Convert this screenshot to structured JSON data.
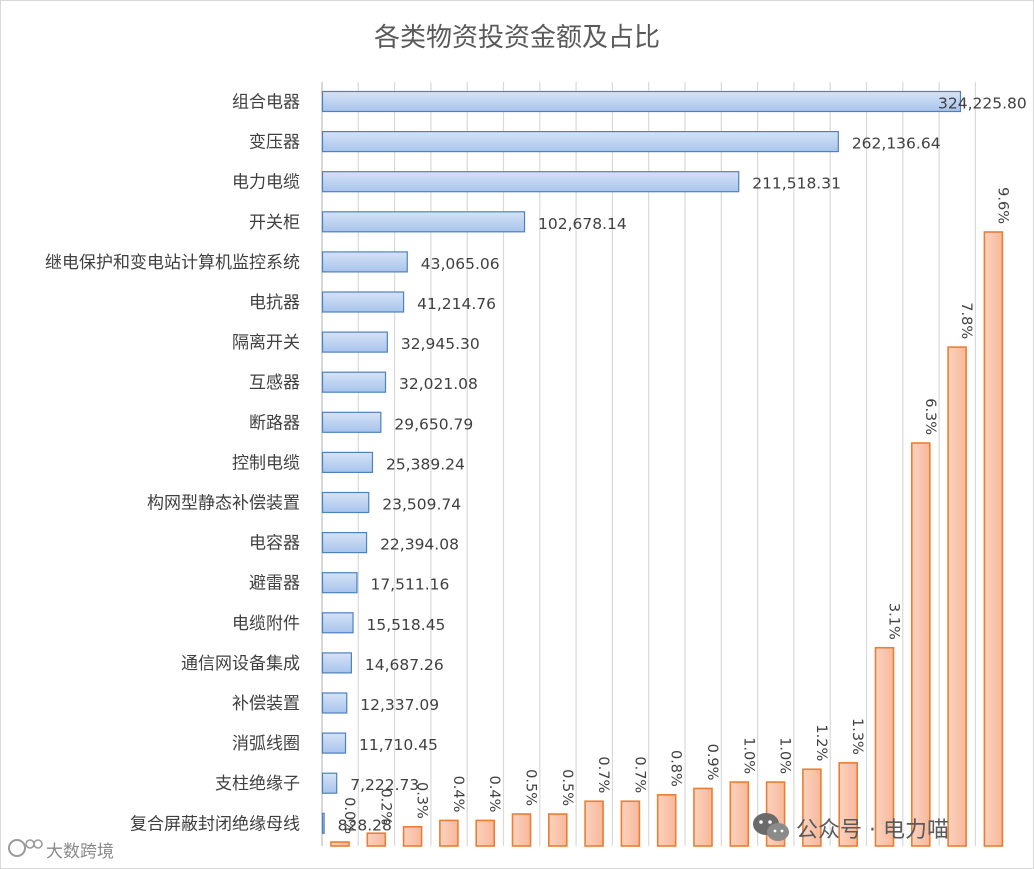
{
  "chart_data": [
    {
      "type": "bar",
      "orientation": "horizontal",
      "title": "各类物资投资金额及占比",
      "categories": [
        "组合电器",
        "变压器",
        "电力电缆",
        "开关柜",
        "继电保护和变电站计算机监控系统",
        "电抗器",
        "隔离开关",
        "互感器",
        "断路器",
        "控制电缆",
        "构网型静态补偿装置",
        "电容器",
        "避雷器",
        "电缆附件",
        "通信网设备集成",
        "补偿装置",
        "消弧线圈",
        "支柱绝缘子",
        "复合屏蔽封闭绝缘母线"
      ],
      "values": [
        324225.8,
        262136.64,
        211518.31,
        102678.14,
        43065.06,
        41214.76,
        32945.3,
        32021.08,
        29650.79,
        25389.24,
        23509.74,
        22394.08,
        17511.16,
        15518.45,
        14687.26,
        12337.09,
        11710.45,
        7222.73,
        828.28
      ],
      "value_labels": [
        "324,225.80",
        "262,136.64",
        "211,518.31",
        "102,678.14",
        "43,065.06",
        "41,214.76",
        "32,945.30",
        "32,021.08",
        "29,650.79",
        "25,389.24",
        "23,509.74",
        "22,394.08",
        "17,511.16",
        "15,518.45",
        "14,687.26",
        "12,337.09",
        "11,710.45",
        "7,222.73",
        "828.28"
      ],
      "xlim": [
        0,
        350000
      ],
      "grid": true,
      "color": "#a8c4ec",
      "edge_color": "#4f81bd"
    },
    {
      "type": "bar",
      "orientation": "vertical",
      "values": [
        0.0,
        0.2,
        0.3,
        0.4,
        0.4,
        0.5,
        0.5,
        0.7,
        0.7,
        0.8,
        0.9,
        1.0,
        1.0,
        1.2,
        1.3,
        3.1,
        6.3,
        7.8,
        9.6
      ],
      "value_labels": [
        "0.0%",
        "0.2%",
        "0.3%",
        "0.4%",
        "0.4%",
        "0.5%",
        "0.5%",
        "0.7%",
        "0.7%",
        "0.8%",
        "0.9%",
        "1.0%",
        "1.0%",
        "1.2%",
        "1.3%",
        "3.1%",
        "6.3%",
        "7.8%",
        "9.6%"
      ],
      "unit": "%",
      "ylim": [
        0,
        12.0
      ],
      "color": "#f8b89a",
      "edge_color": "#ed7d31"
    }
  ],
  "watermarks": {
    "right_text": "公众号 · 电力喵",
    "left_text": "大数跨境"
  },
  "colors": {
    "grid": "#d9d9d9",
    "title": "#595959",
    "text": "#404040"
  }
}
